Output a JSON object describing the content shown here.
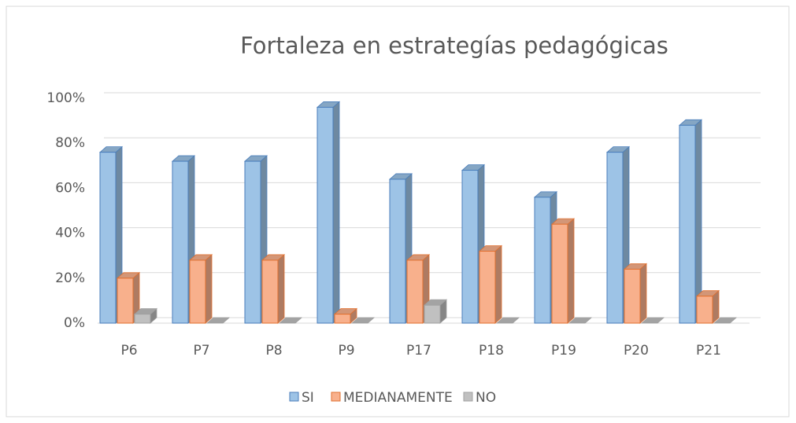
{
  "chart_data": {
    "type": "bar3d",
    "title": "Fortaleza en estrategías pedagógicas",
    "categories": [
      "P6",
      "P7",
      "P8",
      "P9",
      "P17",
      "P18",
      "P19",
      "P20",
      "P21"
    ],
    "series": [
      {
        "name": "SI",
        "color": "#9dc3e6",
        "values": [
          76,
          72,
          72,
          96,
          64,
          68,
          56,
          76,
          88
        ]
      },
      {
        "name": "MEDIANAMENTE",
        "color": "#f8b08c",
        "values": [
          20,
          28,
          28,
          4,
          28,
          32,
          44,
          24,
          12
        ]
      },
      {
        "name": "NO",
        "color": "#c0c0c0",
        "values": [
          4,
          0,
          0,
          0,
          8,
          0,
          0,
          0,
          0
        ]
      }
    ],
    "ylim": [
      0,
      100
    ],
    "yticks": [
      {
        "value": 0,
        "label": "0%"
      },
      {
        "value": 20,
        "label": "20%"
      },
      {
        "value": 40,
        "label": "40%"
      },
      {
        "value": 60,
        "label": "60%"
      },
      {
        "value": 80,
        "label": "80%"
      },
      {
        "value": 100,
        "label": "100%"
      }
    ],
    "grid": true,
    "legend": "bottom"
  }
}
